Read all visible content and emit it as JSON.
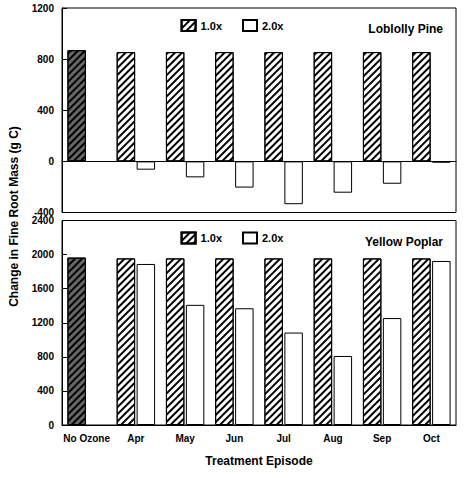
{
  "chart_data": [
    {
      "type": "bar",
      "title": "Loblolly Pine",
      "ylabel": "Change in Fine Root Mass (g C)",
      "categories": [
        "No Ozone",
        "Apr",
        "May",
        "Jun",
        "Jul",
        "Aug",
        "Sep",
        "Oct"
      ],
      "series": [
        {
          "name": "1.0x",
          "colors": [
            "#666666",
            "#ffffff",
            "#ffffff",
            "#ffffff",
            "#ffffff",
            "#ffffff",
            "#ffffff",
            "#ffffff"
          ],
          "values": [
            870,
            855,
            855,
            855,
            855,
            855,
            855,
            855
          ]
        },
        {
          "name": "2.0x",
          "color": "#ffffff",
          "values": [
            null,
            -65,
            -125,
            -205,
            -335,
            -245,
            -175,
            -10
          ]
        }
      ],
      "ylim": [
        -400,
        1200
      ],
      "yticks": [
        -400,
        0,
        400,
        800,
        1200
      ],
      "grid": false,
      "legend": "top",
      "tick_labels": "y"
    },
    {
      "type": "bar",
      "title": "Yellow Poplar",
      "xlabel": "Treatment Episode",
      "categories": [
        "No Ozone",
        "Apr",
        "May",
        "Jun",
        "Jul",
        "Aug",
        "Sep",
        "Oct"
      ],
      "series": [
        {
          "name": "1.0x",
          "colors": [
            "#666666",
            "#ffffff",
            "#ffffff",
            "#ffffff",
            "#ffffff",
            "#ffffff",
            "#ffffff",
            "#ffffff"
          ],
          "values": [
            1965,
            1955,
            1955,
            1955,
            1955,
            1955,
            1955,
            1955
          ]
        },
        {
          "name": "2.0x",
          "color": "#ffffff",
          "values": [
            null,
            1890,
            1410,
            1370,
            1085,
            810,
            1255,
            1925
          ]
        }
      ],
      "ylim": [
        0,
        2400
      ],
      "yticks": [
        0,
        400,
        800,
        1200,
        1600,
        2000,
        2400
      ],
      "grid": false,
      "legend": "top"
    }
  ]
}
